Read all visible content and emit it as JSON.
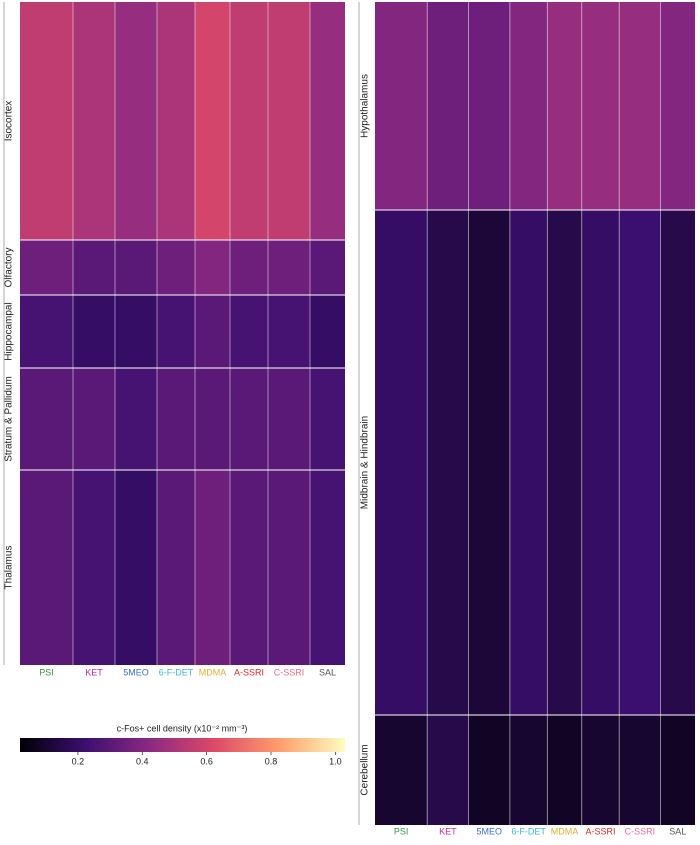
{
  "chart_data": {
    "type": "heatmap",
    "groups": [
      {
        "name": "PSI",
        "color": "#2e9e3e"
      },
      {
        "name": "KET",
        "color": "#d6249a"
      },
      {
        "name": "5MEO",
        "color": "#3d6fcc"
      },
      {
        "name": "6-F-DET",
        "color": "#3fb6e0"
      },
      {
        "name": "MDMA",
        "color": "#e0b030"
      },
      {
        "name": "A-SSRI",
        "color": "#e02828"
      },
      {
        "name": "C-SSRI",
        "color": "#f06a8a"
      },
      {
        "name": "SAL",
        "color": "#555555"
      }
    ],
    "panels": [
      {
        "sections": [
          {
            "name": "Isocortex",
            "values": [
              0.55,
              0.5,
              0.45,
              0.5,
              0.6,
              0.55,
              0.55,
              0.45
            ]
          },
          {
            "name": "Olfactory",
            "values": [
              0.35,
              0.3,
              0.3,
              0.35,
              0.4,
              0.35,
              0.35,
              0.3
            ]
          },
          {
            "name": "Hippocampal",
            "values": [
              0.25,
              0.2,
              0.2,
              0.25,
              0.3,
              0.25,
              0.25,
              0.2
            ]
          },
          {
            "name": "Stratum & Pallidum",
            "values": [
              0.3,
              0.3,
              0.25,
              0.3,
              0.3,
              0.3,
              0.3,
              0.25
            ]
          },
          {
            "name": "Thalamus",
            "values": [
              0.3,
              0.25,
              0.2,
              0.3,
              0.35,
              0.3,
              0.3,
              0.25
            ]
          }
        ]
      },
      {
        "sections": [
          {
            "name": "Hypothalamus",
            "values": [
              0.4,
              0.35,
              0.35,
              0.4,
              0.45,
              0.45,
              0.45,
              0.4
            ]
          },
          {
            "name": "Midbrain & Hindbrain",
            "values": [
              0.2,
              0.15,
              0.12,
              0.2,
              0.15,
              0.2,
              0.22,
              0.15
            ]
          },
          {
            "name": "Cerebellum",
            "values": [
              0.1,
              0.15,
              0.08,
              0.1,
              0.08,
              0.1,
              0.1,
              0.08
            ]
          }
        ]
      }
    ],
    "colorbar_label": "c-Fos+ cell density (x10⁻² mm⁻³)",
    "colorbar_lim": [
      0.02,
      1.03
    ],
    "colorbar_ticks": [
      0.2,
      0.4,
      0.6,
      0.8,
      {
        "value": 1,
        "label": "1.0"
      }
    ],
    "colormap": [
      "#000004",
      "#3b0f70",
      "#8c2981",
      "#de4968",
      "#fe9f6d",
      "#fcfdbf"
    ]
  }
}
